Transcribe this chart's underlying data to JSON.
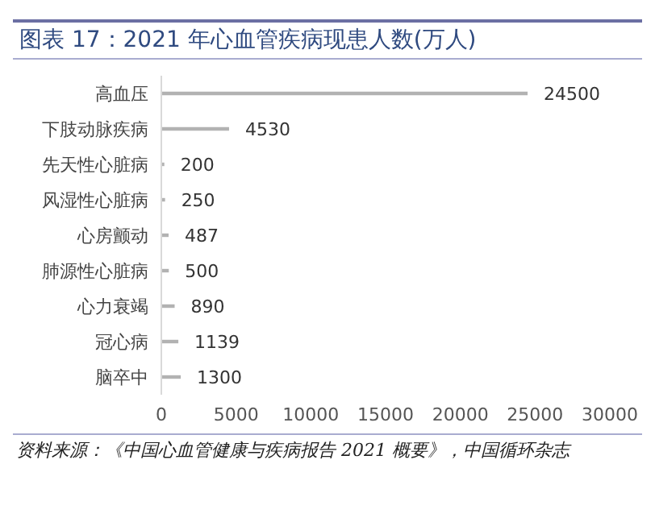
{
  "chart_data": {
    "type": "bar",
    "orientation": "horizontal",
    "title": "图表 17：2021 年心血管疾病现患人数(万人)",
    "categories": [
      "高血压",
      "下肢动脉疾病",
      "先天性心脏病",
      "风湿性心脏病",
      "心房颤动",
      "肺源性心脏病",
      "心力衰竭",
      "冠心病",
      "脑卒中"
    ],
    "values": [
      24500,
      4530,
      200,
      250,
      487,
      500,
      890,
      1139,
      1300
    ],
    "color": "#b2b2b2",
    "xlim": [
      0,
      30000
    ],
    "xticks": [
      0,
      5000,
      10000,
      15000,
      20000,
      25000,
      30000
    ],
    "data_labels": true,
    "annotations": [
      "资料来源：《中国心血管健康与疾病报告 2021 概要》，中国循环杂志"
    ]
  }
}
